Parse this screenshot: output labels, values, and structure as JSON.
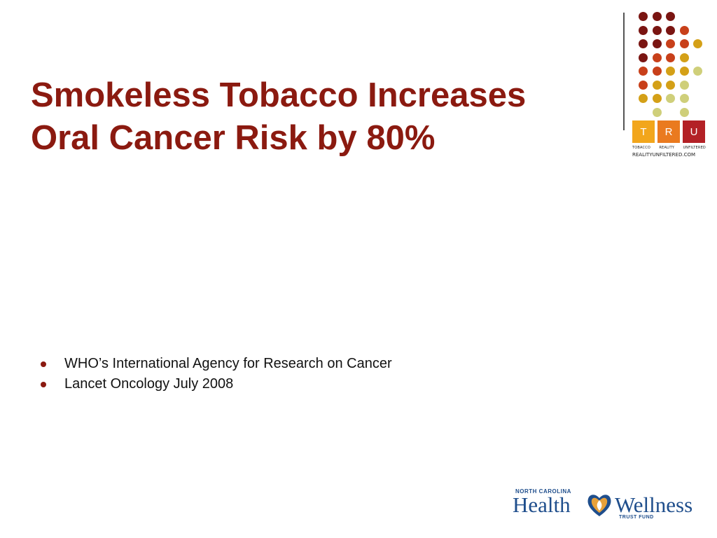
{
  "slide": {
    "title_lines": [
      "Smokeless Tobacco Increases",
      "Oral Cancer Risk by 80%"
    ],
    "bullets": [
      "WHO’s International Agency for Research on Cancer",
      "Lancet Oncology July 2008"
    ]
  },
  "tru_logo": {
    "letters": [
      "T",
      "R",
      "U"
    ],
    "words": [
      "TOBACCO",
      "REALITY",
      "UNFILTERED"
    ],
    "url": "REALITYUNFILTERED.COM",
    "colors": [
      "#f2a61c",
      "#ea7a1f",
      "#b32126"
    ]
  },
  "ncw_logo": {
    "top_text": "NORTH CAROLINA",
    "health": "Health",
    "wellness": "Wellness",
    "bottom_text": "TRUST FUND",
    "emblem_icon": "heart-drop-emblem-icon"
  },
  "theme": {
    "title_color": "#8b1a10",
    "dot_colors": [
      "#7a1512",
      "#c8401a",
      "#d4a017",
      "#cfcf7a"
    ]
  }
}
